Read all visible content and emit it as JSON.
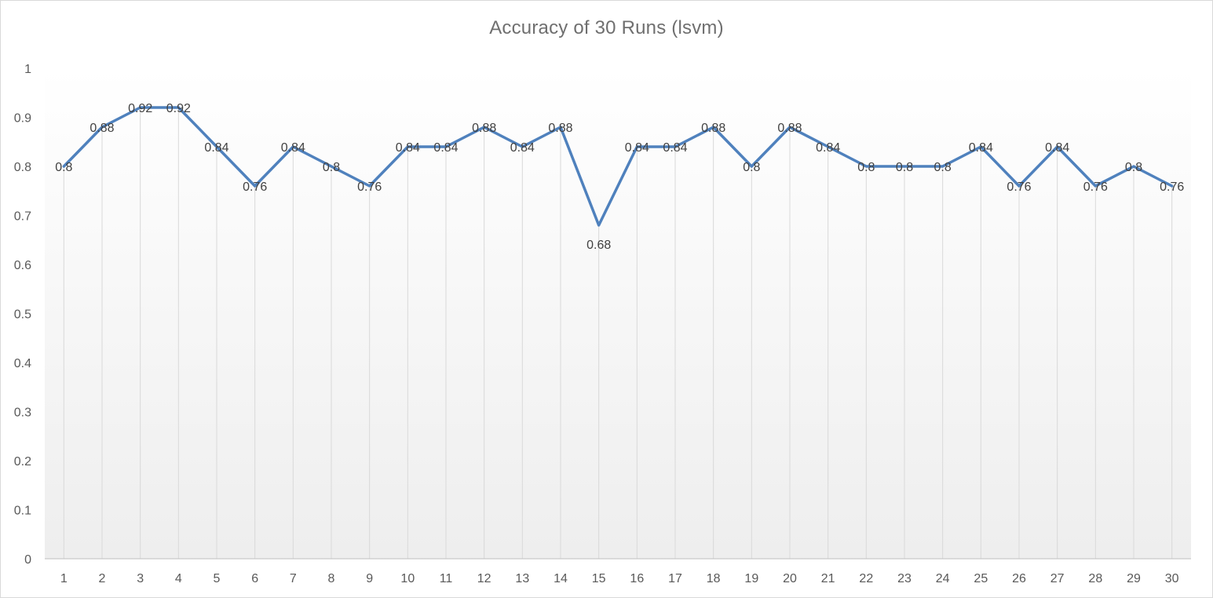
{
  "chart_data": {
    "type": "line",
    "title": "Accuracy  of 30 Runs (lsvm)",
    "xlabel": "",
    "ylabel": "",
    "categories": [
      "1",
      "2",
      "3",
      "4",
      "5",
      "6",
      "7",
      "8",
      "9",
      "10",
      "11",
      "12",
      "13",
      "14",
      "15",
      "16",
      "17",
      "18",
      "19",
      "20",
      "21",
      "22",
      "23",
      "24",
      "25",
      "26",
      "27",
      "28",
      "29",
      "30"
    ],
    "series": [
      {
        "values": [
          0.8,
          0.88,
          0.92,
          0.92,
          0.84,
          0.76,
          0.84,
          0.8,
          0.76,
          0.84,
          0.84,
          0.88,
          0.84,
          0.88,
          0.68,
          0.84,
          0.84,
          0.88,
          0.8,
          0.88,
          0.84,
          0.8,
          0.8,
          0.8,
          0.84,
          0.76,
          0.84,
          0.76,
          0.8,
          0.76
        ],
        "labels": [
          "0.8",
          "0.88",
          "0.92",
          "0.92",
          "0.84",
          "0.76",
          "0.84",
          "0.8",
          "0.76",
          "0.84",
          "0.84",
          "0.88",
          "0.84",
          "0.88",
          "0.68",
          "0.84",
          "0.84",
          "0.88",
          "0.8",
          "0.88",
          "0.84",
          "0.8",
          "0.8",
          "0.8",
          "0.84",
          "0.76",
          "0.84",
          "0.76",
          "0.8",
          "0.76"
        ],
        "color": "#4f81bd"
      }
    ],
    "ylim": [
      0,
      1
    ],
    "yticks": [
      "0",
      "0.1",
      "0.2",
      "0.3",
      "0.4",
      "0.5",
      "0.6",
      "0.7",
      "0.8",
      "0.9",
      "1"
    ],
    "grid": "vertical drop lines",
    "legend": "none",
    "plot_background": "gradient white to light gray"
  }
}
